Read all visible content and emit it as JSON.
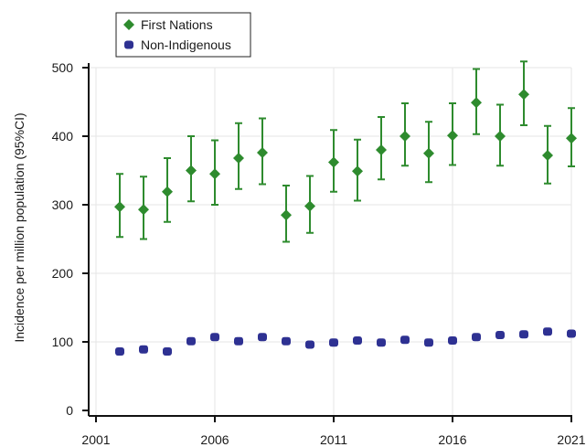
{
  "chart_data": {
    "type": "scatter",
    "title": "",
    "xlabel": "",
    "ylabel": "Incidence per million population (95%CI)",
    "xlim": [
      2001,
      2021
    ],
    "ylim": [
      0,
      500
    ],
    "xticks": [
      2001,
      2006,
      2011,
      2016,
      2021
    ],
    "yticks": [
      0,
      100,
      200,
      300,
      400,
      500
    ],
    "grid": true,
    "legend_position": "top-left",
    "series": [
      {
        "name": "First Nations",
        "marker": "diamond",
        "color": "#2e8b2e",
        "x": [
          2002,
          2003,
          2004,
          2005,
          2006,
          2007,
          2008,
          2009,
          2010,
          2011,
          2012,
          2013,
          2014,
          2015,
          2016,
          2017,
          2018,
          2019,
          2020,
          2021
        ],
        "y": [
          297,
          293,
          319,
          350,
          345,
          368,
          376,
          285,
          298,
          362,
          349,
          380,
          400,
          375,
          401,
          449,
          400,
          461,
          372,
          397
        ],
        "lower": [
          253,
          250,
          275,
          305,
          300,
          323,
          330,
          246,
          259,
          319,
          306,
          337,
          357,
          333,
          358,
          403,
          357,
          416,
          331,
          356
        ],
        "upper": [
          345,
          341,
          368,
          400,
          394,
          419,
          426,
          328,
          342,
          409,
          395,
          428,
          448,
          421,
          448,
          498,
          446,
          509,
          415,
          441
        ]
      },
      {
        "name": "Non-Indigenous",
        "marker": "circle",
        "color": "#2e3192",
        "x": [
          2002,
          2003,
          2004,
          2005,
          2006,
          2007,
          2008,
          2009,
          2010,
          2011,
          2012,
          2013,
          2014,
          2015,
          2016,
          2017,
          2018,
          2019,
          2020,
          2021
        ],
        "y": [
          86,
          89,
          86,
          101,
          107,
          101,
          107,
          101,
          96,
          99,
          102,
          99,
          103,
          99,
          102,
          107,
          110,
          111,
          115,
          112
        ],
        "lower": [
          82,
          85,
          82,
          97,
          103,
          97,
          103,
          97,
          92,
          95,
          98,
          95,
          99,
          95,
          98,
          103,
          106,
          107,
          111,
          108
        ],
        "upper": [
          90,
          93,
          90,
          105,
          111,
          105,
          111,
          105,
          100,
          103,
          106,
          103,
          107,
          103,
          106,
          111,
          114,
          115,
          119,
          116
        ]
      }
    ]
  }
}
